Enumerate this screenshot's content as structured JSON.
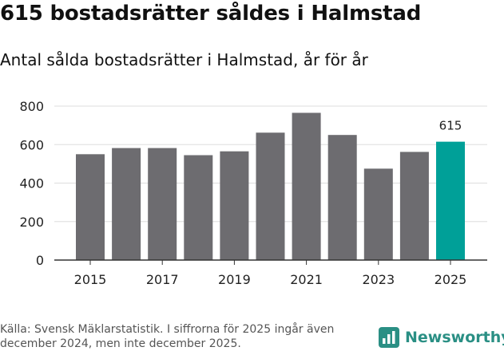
{
  "title": "615 bostadsrätter såldes i Halmstad",
  "subtitle": "Antal sålda bostadsrätter i Halmstad, år för år",
  "source": "Källa: Svensk Mäklarstatistik. I siffrorna för 2025 ingår även december 2024, men inte december 2025.",
  "brand": "Newsworthy",
  "colors": {
    "bar": "#6d6c70",
    "highlight": "#00a098",
    "grid": "#dddddd",
    "brand": "#2a8f84"
  },
  "chart_data": {
    "type": "bar",
    "title": "Antal sålda bostadsrätter i Halmstad, år för år",
    "xlabel": "",
    "ylabel": "",
    "categories": [
      "2015",
      "2016",
      "2017",
      "2018",
      "2019",
      "2020",
      "2021",
      "2022",
      "2023",
      "2024",
      "2025"
    ],
    "values": [
      550,
      582,
      582,
      545,
      565,
      662,
      765,
      650,
      475,
      562,
      615
    ],
    "x_tick_labels": [
      "2015",
      "2017",
      "2019",
      "2021",
      "2023",
      "2025"
    ],
    "y_ticks": [
      0,
      200,
      400,
      600,
      800
    ],
    "ylim": [
      0,
      800
    ],
    "highlight": "2025",
    "annotation": {
      "category": "2025",
      "label": "615"
    },
    "grid": true
  }
}
